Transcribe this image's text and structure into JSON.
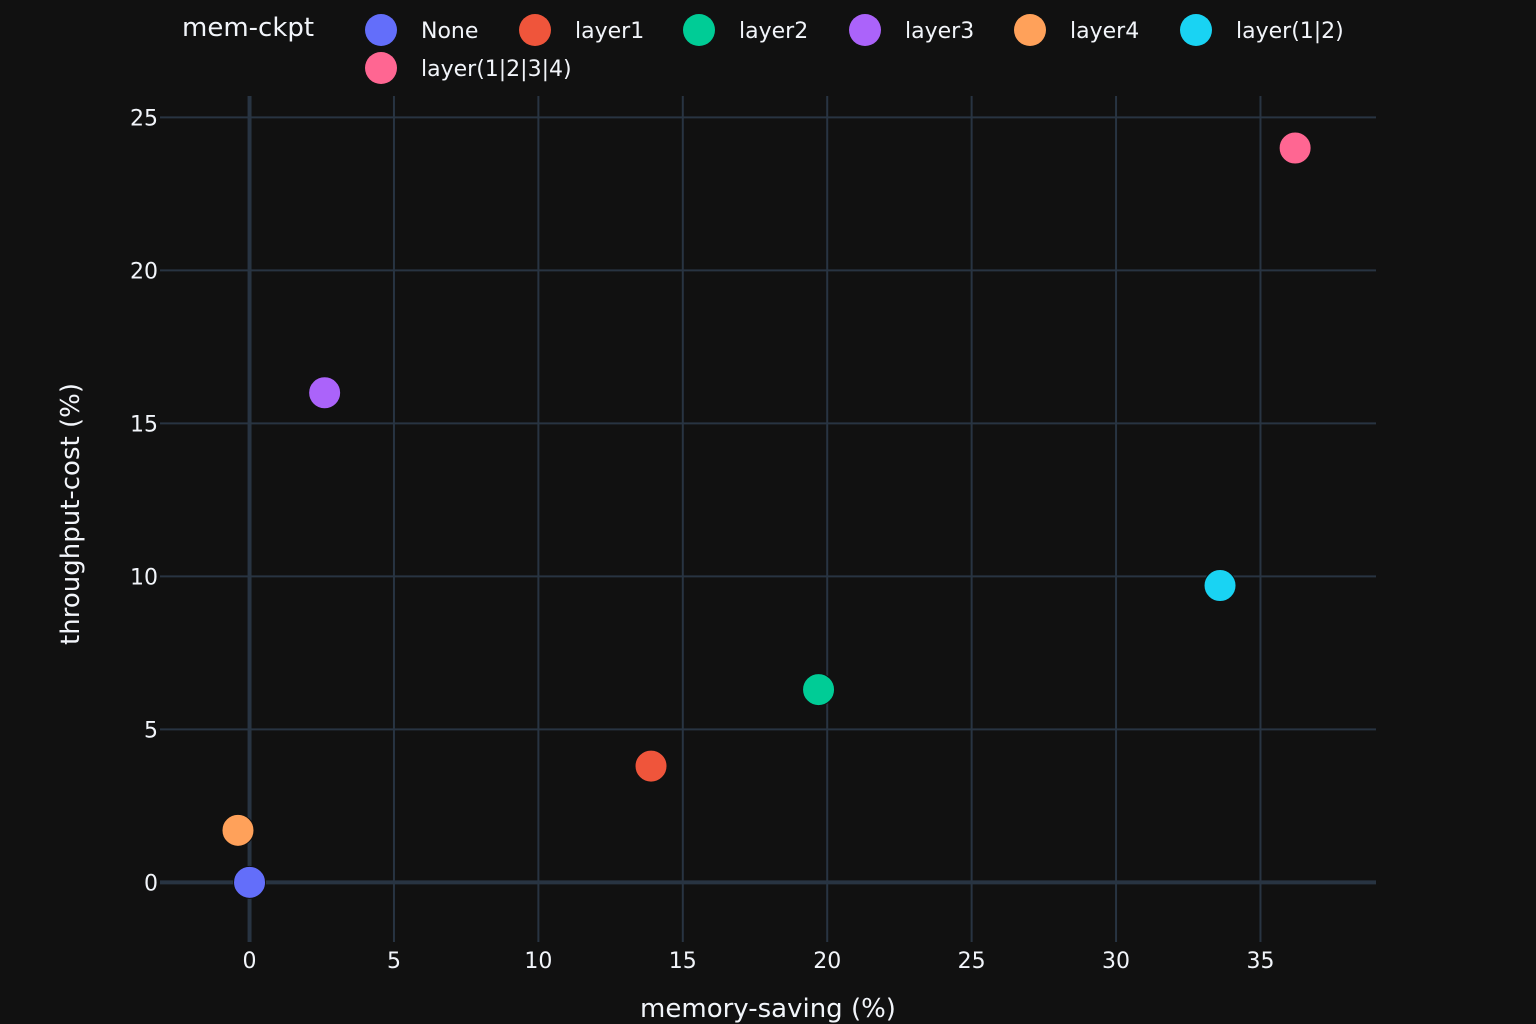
{
  "chart_data": {
    "type": "scatter",
    "xlabel": "memory-saving (%)",
    "ylabel": "throughput-cost (%)",
    "xlim": [
      -3.1,
      39
    ],
    "ylim": [
      -1.95,
      25.7
    ],
    "xticks": [
      0,
      5,
      10,
      15,
      20,
      25,
      30,
      35
    ],
    "yticks": [
      0,
      5,
      10,
      15,
      20,
      25
    ],
    "grid": true,
    "legend": {
      "title": "mem-ckpt",
      "position": "top"
    },
    "series": [
      {
        "name": "None",
        "color": "#636efa",
        "x": [
          0
        ],
        "y": [
          0
        ]
      },
      {
        "name": "layer1",
        "color": "#EF553B",
        "x": [
          13.9
        ],
        "y": [
          3.8
        ]
      },
      {
        "name": "layer2",
        "color": "#00cc96",
        "x": [
          19.7
        ],
        "y": [
          6.3
        ]
      },
      {
        "name": "layer3",
        "color": "#ab63fa",
        "x": [
          2.6
        ],
        "y": [
          16.0
        ]
      },
      {
        "name": "layer4",
        "color": "#FFA15A",
        "x": [
          -0.4
        ],
        "y": [
          1.7
        ]
      },
      {
        "name": "layer(1|2)",
        "color": "#19d3f3",
        "x": [
          33.6
        ],
        "y": [
          9.7
        ]
      },
      {
        "name": "layer(1|2|3|4)",
        "color": "#FF6692",
        "x": [
          36.2
        ],
        "y": [
          24.0
        ]
      }
    ]
  }
}
